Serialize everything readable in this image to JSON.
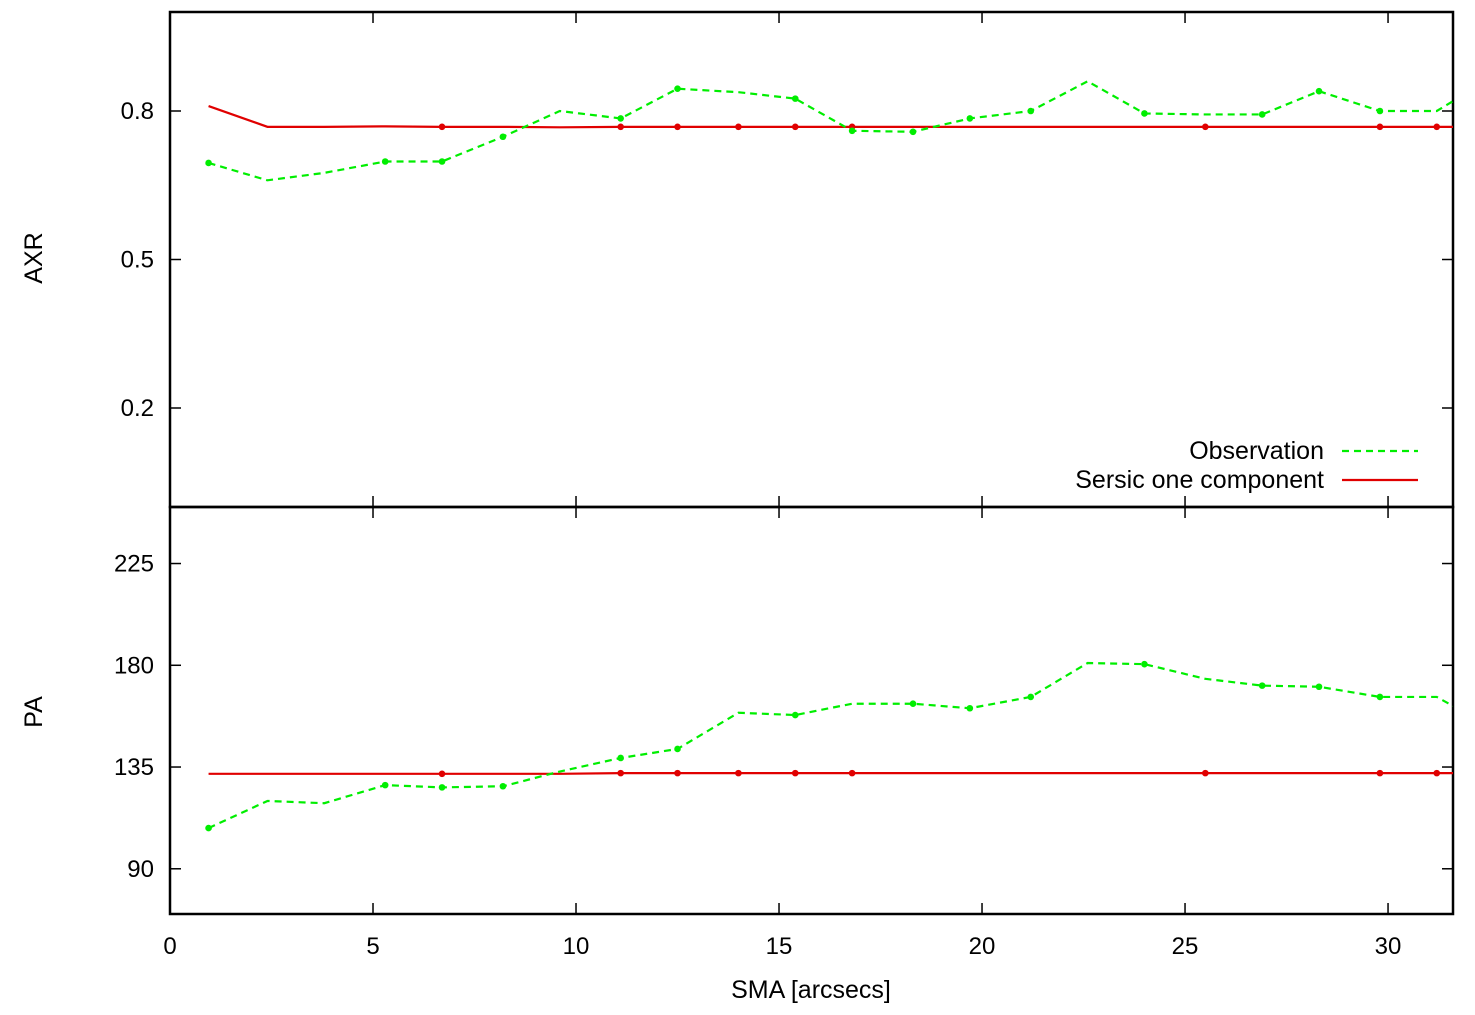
{
  "chart_data": {
    "type": "line",
    "layout": "stacked-panels",
    "shared_x": {
      "label": "SMA [arcsecs]",
      "ticks": [
        0,
        5,
        10,
        15,
        20,
        25,
        30
      ],
      "range": [
        0,
        31.6
      ]
    },
    "legend": {
      "placement": "bottom-right of top panel",
      "entries": [
        {
          "label": "Observation",
          "series": "observation",
          "style": "dashed"
        },
        {
          "label": "Sersic one component",
          "series": "model",
          "style": "solid"
        }
      ]
    },
    "colors": {
      "observation": "#00ee00",
      "model": "#e00000",
      "frame": "#000000"
    },
    "panels": [
      {
        "id": "axr",
        "ylabel": "AXR",
        "ylim": [
          0.0,
          1.0
        ],
        "yticks": [
          0.2,
          0.5,
          0.8
        ],
        "ytick_labels": [
          "0.2",
          "0.5",
          "0.8"
        ],
        "series": [
          {
            "name": "Observation",
            "key": "observation",
            "x": [
              0.95,
              2.4,
              3.8,
              5.3,
              6.7,
              8.2,
              9.6,
              11.1,
              12.5,
              14.0,
              15.4,
              16.8,
              18.3,
              19.7,
              21.2,
              22.6,
              24.0,
              25.5,
              26.9,
              28.3,
              29.8,
              31.2,
              31.6
            ],
            "y": [
              0.695,
              0.66,
              0.675,
              0.698,
              0.698,
              0.748,
              0.8,
              0.785,
              0.845,
              0.838,
              0.825,
              0.76,
              0.758,
              0.785,
              0.8,
              0.86,
              0.795,
              0.793,
              0.793,
              0.84,
              0.8,
              0.8,
              0.82
            ],
            "markers": [
              0.95,
              5.3,
              6.7,
              8.2,
              11.1,
              12.5,
              15.4,
              16.8,
              18.3,
              19.7,
              21.2,
              24.0,
              26.9,
              28.3,
              29.8
            ]
          },
          {
            "name": "Sersic one component",
            "key": "model",
            "x": [
              0.95,
              2.4,
              3.8,
              5.3,
              6.7,
              8.2,
              9.6,
              11.1,
              12.5,
              14.0,
              15.4,
              16.8,
              18.3,
              19.7,
              21.2,
              22.6,
              24.0,
              25.5,
              26.9,
              28.3,
              29.8,
              31.2,
              31.6
            ],
            "y": [
              0.81,
              0.768,
              0.768,
              0.769,
              0.768,
              0.768,
              0.767,
              0.768,
              0.768,
              0.768,
              0.768,
              0.768,
              0.768,
              0.768,
              0.768,
              0.768,
              0.768,
              0.768,
              0.768,
              0.768,
              0.768,
              0.768,
              0.768
            ],
            "markers": [
              6.7,
              11.1,
              12.5,
              14.0,
              15.4,
              16.8,
              25.5,
              29.8,
              31.2
            ]
          }
        ]
      },
      {
        "id": "pa",
        "ylabel": "PA",
        "ylim": [
          70,
          250
        ],
        "yticks": [
          90,
          135,
          180,
          225
        ],
        "ytick_labels": [
          "90",
          "135",
          "180",
          "225"
        ],
        "series": [
          {
            "name": "Observation",
            "key": "observation",
            "x": [
              0.95,
              2.4,
              3.8,
              5.3,
              6.7,
              8.2,
              9.6,
              11.1,
              12.5,
              14.0,
              15.4,
              16.8,
              18.3,
              19.7,
              21.2,
              22.6,
              24.0,
              25.5,
              26.9,
              28.3,
              29.8,
              31.2,
              31.6
            ],
            "y": [
              108,
              120,
              119,
              127,
              126,
              126.5,
              133,
              139,
              143,
              159,
              158,
              163,
              163,
              161,
              166,
              181,
              180.5,
              174,
              171,
              170.5,
              166,
              166,
              162
            ],
            "markers": [
              0.95,
              5.3,
              6.7,
              8.2,
              11.1,
              12.5,
              15.4,
              18.3,
              19.7,
              21.2,
              24.0,
              26.9,
              28.3,
              29.8
            ]
          },
          {
            "name": "Sersic one component",
            "key": "model",
            "x": [
              0.95,
              2.4,
              3.8,
              5.3,
              6.7,
              8.2,
              9.6,
              11.1,
              12.5,
              14.0,
              15.4,
              16.8,
              18.3,
              19.7,
              21.2,
              22.6,
              24.0,
              25.5,
              26.9,
              28.3,
              29.8,
              31.2,
              31.6
            ],
            "y": [
              132,
              132,
              132,
              132,
              132,
              132,
              132,
              132.3,
              132.3,
              132.3,
              132.3,
              132.3,
              132.3,
              132.3,
              132.3,
              132.3,
              132.3,
              132.3,
              132.3,
              132.3,
              132.3,
              132.3,
              132.3
            ],
            "markers": [
              6.7,
              11.1,
              12.5,
              14.0,
              15.4,
              16.8,
              25.5,
              29.8,
              31.2
            ]
          }
        ]
      }
    ]
  }
}
